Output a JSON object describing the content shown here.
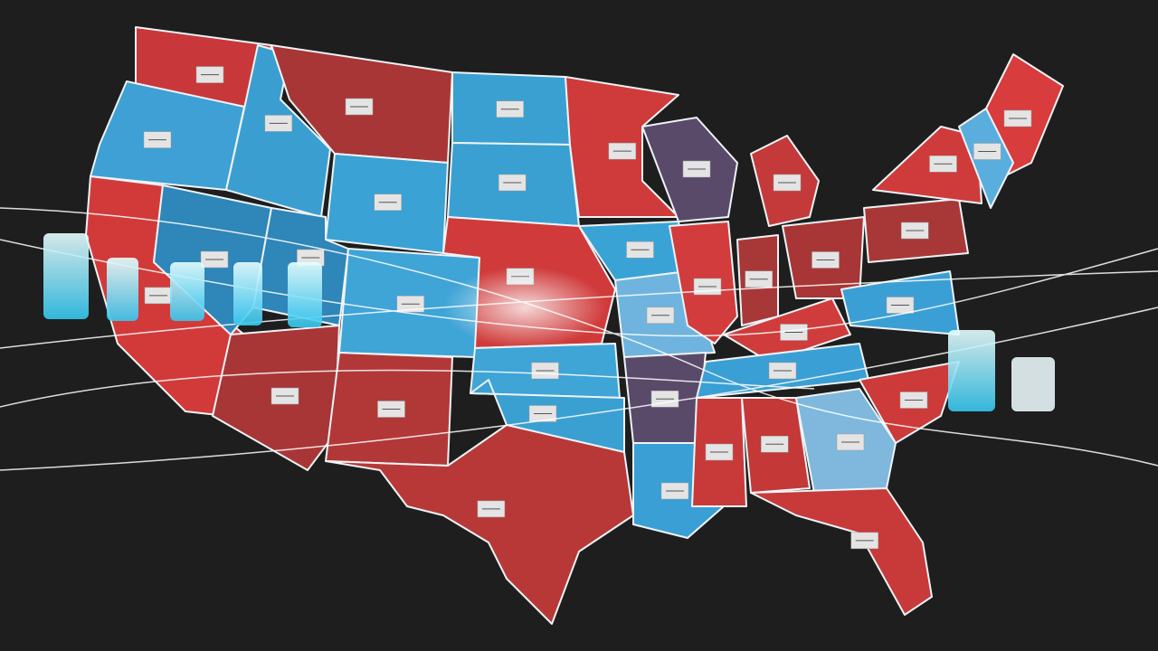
{
  "map": {
    "regions": [
      {
        "color": "#c8383a"
      },
      {
        "color": "#3ea0d4"
      },
      {
        "color": "#d23a3a"
      },
      {
        "color": "#3a9fd0"
      },
      {
        "color": "#2f86b8"
      },
      {
        "color": "#a93636"
      },
      {
        "color": "#3aa2d4"
      },
      {
        "color": "#2f86b8"
      },
      {
        "color": "#a83636"
      },
      {
        "color": "#3fa4d6"
      },
      {
        "color": "#b23838"
      },
      {
        "color": "#3aa0d2"
      },
      {
        "color": "#3aa0d2"
      },
      {
        "color": "#d03a3a"
      },
      {
        "color": "#3fa4d6"
      },
      {
        "color": "#3aa0d2"
      },
      {
        "color": "#b83838"
      },
      {
        "color": "#cf3a3a"
      },
      {
        "color": "#3aa3d6"
      },
      {
        "color": "#6fb4de"
      },
      {
        "color": "#5a4a6a"
      },
      {
        "color": "#3a9fd4"
      },
      {
        "color": "#5a4a6a"
      },
      {
        "color": "#d23c3c"
      },
      {
        "color": "#c43a3a"
      },
      {
        "color": "#a83838"
      },
      {
        "color": "#a83636"
      },
      {
        "color": "#d03c3c"
      },
      {
        "color": "#3a9fd4"
      },
      {
        "color": "#c83a3a"
      },
      {
        "color": "#c43838"
      },
      {
        "color": "#7fb8dc"
      },
      {
        "color": "#c83a3a"
      },
      {
        "color": "#cc3a3a"
      },
      {
        "color": "#3a9fd4"
      },
      {
        "color": "#a83838"
      },
      {
        "color": "#cf3b3b"
      },
      {
        "color": "#d83c3c"
      },
      {
        "color": "#5aaede"
      }
    ]
  }
}
